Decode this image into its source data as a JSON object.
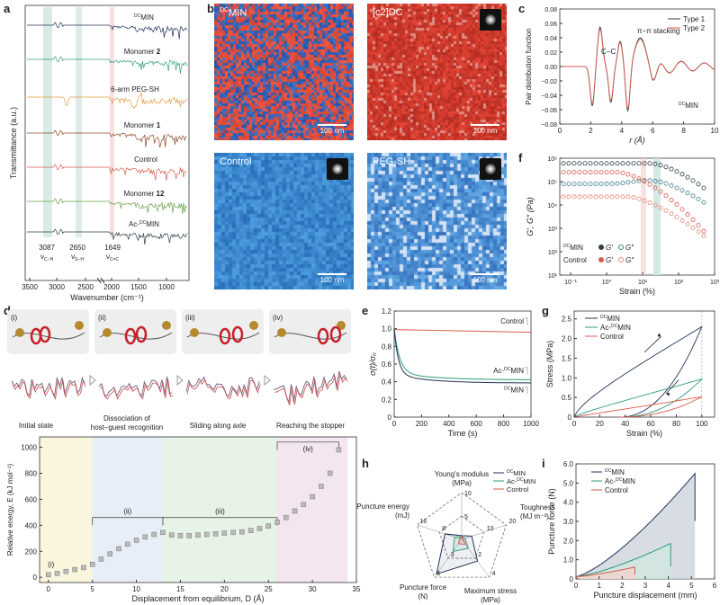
{
  "panels": {
    "a": "a",
    "b": "b",
    "c": "c",
    "d": "d",
    "e": "e",
    "f": "f",
    "g": "g",
    "h": "h",
    "i": "i"
  },
  "microscopy": {
    "dcmin": "MIN",
    "dcmin_sup": "DC",
    "c2idc": "[c2]DC",
    "control": "Control",
    "pegsh": "PEG-SH",
    "scalebar": "100 nm"
  },
  "colors": {
    "red": "#d95b4b",
    "green": "#2e9c7a",
    "dark": "#2f3e46",
    "orange": "#e89a3c",
    "brown": "#8a4b2a",
    "olive": "#6aa24a",
    "navy": "#22335a",
    "blue": "#2a6fb5"
  },
  "d_panel": {
    "steps": [
      "(i)",
      "(ii)",
      "(iii)",
      "(iv)"
    ],
    "captions": [
      "Initial state",
      "Dissociation of host–guest recognition",
      "Sliding along axle",
      "Reaching the stopper"
    ]
  },
  "chart_data": [
    {
      "id": "a",
      "type": "line",
      "xlabel": "Wavenumber (cm⁻¹)",
      "ylabel": "Transmittance (a.u.)",
      "xticks": [
        "3500",
        "3000",
        "2500",
        "2000",
        "1500",
        "1000"
      ],
      "series_labels": [
        "DCMIN",
        "Monomer 2",
        "6-arm PEG-SH",
        "Monomer 1",
        "Control",
        "Monomer 12",
        "Ac-DCMIN"
      ],
      "annotations": [
        {
          "value": "3087",
          "label": "νC−H"
        },
        {
          "value": "2650",
          "label": "νS−H"
        },
        {
          "value": "1649",
          "label": "νC=C"
        }
      ]
    },
    {
      "id": "c",
      "type": "line",
      "xlabel": "r (Å)",
      "ylabel": "Pair distribution function",
      "xlim": [
        0,
        10
      ],
      "ylim": [
        -0.08,
        0.08
      ],
      "xticks": [
        "0",
        "2",
        "4",
        "6",
        "8",
        "10"
      ],
      "yticks": [
        "−0.08",
        "−0.06",
        "−0.04",
        "−0.02",
        "0.00",
        "0.02",
        "0.04",
        "0.06",
        "0.08"
      ],
      "series": [
        {
          "name": "Type 1"
        },
        {
          "name": "Type 2"
        }
      ],
      "annotations": [
        "C−C",
        "π−π stacking",
        "DCMIN"
      ]
    },
    {
      "id": "f",
      "type": "scatter",
      "xlabel": "Strain (%)",
      "ylabel": "G′, G″ (Pa)",
      "xlim_log": [
        -1.3,
        3
      ],
      "ylim_log": [
        1,
        6
      ],
      "xticks": [
        "10⁻¹",
        "10⁰",
        "10¹",
        "10²",
        "10³"
      ],
      "yticks": [
        "10¹",
        "10²",
        "10³",
        "10⁴",
        "10⁵",
        "10⁶"
      ],
      "legend": [
        "DCMIN",
        "G′",
        "G″",
        "Control",
        "G′",
        "G″"
      ],
      "series": [
        {
          "name": "DCMIN G′",
          "g0_log": 5.78,
          "decay_start_log": 1.2
        },
        {
          "name": "DCMIN G″",
          "g0_log": 4.9,
          "peak_log": 5.05
        },
        {
          "name": "Control G′",
          "g0_log": 5.4,
          "decay_start_log": 0.6
        },
        {
          "name": "Control G″",
          "g0_log": 4.35
        }
      ]
    },
    {
      "id": "d",
      "type": "scatter",
      "xlabel": "Displacement from equilibrium, D (Å)",
      "ylabel": "Relative energy, E (kJ mol⁻¹)",
      "xlim": [
        -1,
        35
      ],
      "ylim": [
        -40,
        1080
      ],
      "xticks": [
        "0",
        "5",
        "10",
        "15",
        "20",
        "25",
        "30",
        "35"
      ],
      "yticks": [
        "0",
        "200",
        "400",
        "600",
        "800",
        "1000"
      ],
      "x": [
        0,
        1,
        2,
        3,
        4,
        5,
        6,
        7,
        8,
        9,
        10,
        11,
        12,
        13,
        14,
        15,
        16,
        17,
        18,
        19,
        20,
        21,
        22,
        23,
        24,
        25,
        26,
        27,
        28,
        29,
        30,
        31,
        32,
        33
      ],
      "values": [
        20,
        30,
        45,
        60,
        75,
        100,
        140,
        180,
        220,
        255,
        285,
        310,
        330,
        345,
        325,
        320,
        320,
        325,
        330,
        335,
        340,
        345,
        350,
        360,
        375,
        395,
        425,
        460,
        510,
        560,
        620,
        700,
        800,
        980
      ],
      "regions": [
        [
          -1,
          5
        ],
        [
          5,
          13
        ],
        [
          13,
          26
        ],
        [
          26,
          34
        ]
      ]
    },
    {
      "id": "e",
      "type": "line",
      "xlabel": "Time (s)",
      "ylabel": "σ(t)/σ₀",
      "xlim": [
        0,
        1000
      ],
      "ylim": [
        0,
        1.2
      ],
      "xticks": [
        "0",
        "200",
        "400",
        "600",
        "800",
        "1000"
      ],
      "yticks": [
        "0",
        "0.2",
        "0.4",
        "0.6",
        "0.8",
        "1.0",
        "1.2"
      ],
      "series": [
        {
          "name": "Control",
          "plateau": 0.96
        },
        {
          "name": "Ac-DCMIN",
          "plateau": 0.42
        },
        {
          "name": "DCMIN",
          "plateau": 0.39
        }
      ]
    },
    {
      "id": "g",
      "type": "line",
      "xlabel": "Strain (%)",
      "ylabel": "Stress (MPa)",
      "xlim": [
        0,
        110
      ],
      "ylim": [
        0,
        2.7
      ],
      "xticks": [
        "0",
        "20",
        "40",
        "60",
        "80",
        "100"
      ],
      "yticks": [
        "0",
        "0.5",
        "1.0",
        "1.5",
        "2.0",
        "2.5"
      ],
      "series": [
        {
          "name": "DCMIN",
          "max": 2.3
        },
        {
          "name": "Ac-DCMIN",
          "max": 0.97
        },
        {
          "name": "Control",
          "max": 0.52
        }
      ]
    },
    {
      "id": "h",
      "type": "radar",
      "axes": [
        {
          "label": "Young's modulus",
          "unit": "(MPa)",
          "ticks": [
            "5",
            "10"
          ],
          "max": 10
        },
        {
          "label": "Toughness",
          "unit": "(MJ m⁻³)",
          "ticks": [
            "10",
            "20"
          ],
          "max": 20
        },
        {
          "label": "Maximum stress",
          "unit": "(MPa)",
          "ticks": [
            "2",
            "4"
          ],
          "max": 4
        },
        {
          "label": "Puncture force",
          "unit": "(N)",
          "ticks": [
            "3",
            "6"
          ],
          "max": 6
        },
        {
          "label": "Puncture energy",
          "unit": "(mJ)",
          "ticks": [
            "8",
            "16"
          ],
          "max": 16
        }
      ],
      "series": [
        {
          "name": "DCMIN",
          "values": [
            0.8,
            4.5,
            2.3,
            5.5,
            6.0
          ]
        },
        {
          "name": "Ac-DCMIN",
          "values": [
            0.6,
            1.5,
            0.95,
            1.9,
            2.5
          ]
        },
        {
          "name": "Control",
          "values": [
            0.5,
            0.6,
            0.52,
            0.7,
            0.8
          ]
        }
      ]
    },
    {
      "id": "i",
      "type": "area",
      "xlabel": "Puncture displacement (mm)",
      "ylabel": "Puncture force (N)",
      "xlim": [
        0,
        6
      ],
      "ylim": [
        0,
        6
      ],
      "xticks": [
        "0",
        "1",
        "2",
        "3",
        "4",
        "5",
        "6"
      ],
      "yticks": [
        "0",
        "1.0",
        "2.0",
        "3.0",
        "4.0",
        "5.0",
        "6.0"
      ],
      "series": [
        {
          "name": "DCMIN",
          "end_x": 5.15,
          "peak": 5.5
        },
        {
          "name": "Ac-DCMIN",
          "end_x": 4.1,
          "peak": 1.85
        },
        {
          "name": "Control",
          "end_x": 2.55,
          "peak": 0.62
        }
      ]
    }
  ]
}
